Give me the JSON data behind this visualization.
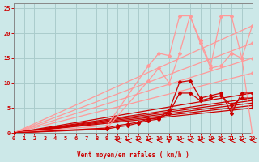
{
  "bg_color": "#cce8e8",
  "grid_color": "#aacccc",
  "line_color_light": "#ff9999",
  "line_color_dark": "#cc0000",
  "xlabel": "Vent moyen/en rafales ( km/h )",
  "xlim": [
    0,
    23
  ],
  "ylim": [
    0,
    26
  ],
  "yticks": [
    0,
    5,
    10,
    15,
    20,
    25
  ],
  "xticks": [
    0,
    1,
    2,
    3,
    4,
    5,
    6,
    7,
    8,
    9,
    10,
    11,
    12,
    13,
    14,
    15,
    16,
    17,
    18,
    19,
    20,
    21,
    22,
    23
  ],
  "lines_light_straight": [
    {
      "x": [
        0,
        23
      ],
      "y": [
        0,
        21.5
      ]
    },
    {
      "x": [
        0,
        23
      ],
      "y": [
        0,
        18.0
      ]
    },
    {
      "x": [
        0,
        23
      ],
      "y": [
        0,
        15.0
      ]
    },
    {
      "x": [
        0,
        23
      ],
      "y": [
        0,
        12.0
      ]
    }
  ],
  "lines_light_jagged": [
    {
      "x": [
        0,
        9,
        13,
        14,
        15,
        16,
        17,
        18,
        19,
        20,
        21,
        22,
        23
      ],
      "y": [
        0,
        1.5,
        13.5,
        16,
        15.5,
        23.5,
        23.5,
        18.5,
        13.5,
        23.5,
        23.5,
        15,
        21.5
      ]
    },
    {
      "x": [
        0,
        9,
        13,
        14,
        15,
        16,
        17,
        18,
        19,
        20,
        21,
        22,
        23
      ],
      "y": [
        0,
        1.0,
        10.5,
        13,
        10,
        16,
        23.5,
        18,
        13,
        13.5,
        16,
        15,
        0
      ]
    }
  ],
  "lines_dark_straight": [
    {
      "x": [
        0,
        23
      ],
      "y": [
        0,
        8.0
      ]
    },
    {
      "x": [
        0,
        23
      ],
      "y": [
        0,
        7.0
      ]
    },
    {
      "x": [
        0,
        23
      ],
      "y": [
        0,
        6.5
      ]
    },
    {
      "x": [
        0,
        23
      ],
      "y": [
        0,
        6.0
      ]
    },
    {
      "x": [
        0,
        23
      ],
      "y": [
        0,
        5.5
      ]
    },
    {
      "x": [
        0,
        23
      ],
      "y": [
        0,
        5.0
      ]
    }
  ],
  "lines_dark_jagged": [
    {
      "x": [
        0,
        9,
        10,
        11,
        12,
        13,
        14,
        15,
        16,
        17,
        18,
        19,
        20,
        21,
        22,
        23
      ],
      "y": [
        0,
        1.0,
        1.5,
        1.8,
        2.2,
        2.8,
        3.0,
        4.5,
        10.2,
        10.5,
        7,
        7.5,
        8,
        4,
        8,
        8
      ]
    },
    {
      "x": [
        0,
        9,
        10,
        11,
        12,
        13,
        14,
        15,
        16,
        17,
        18,
        19,
        20,
        21,
        22,
        23
      ],
      "y": [
        0,
        0.8,
        1.2,
        1.5,
        2.0,
        2.5,
        2.8,
        4.0,
        8,
        8,
        6.5,
        7,
        7.5,
        5.5,
        7,
        7
      ]
    }
  ],
  "arrows": {
    "left_x": [
      10,
      11,
      12,
      13,
      14,
      16,
      17,
      18,
      19,
      20,
      21,
      22,
      23
    ],
    "down_x": [
      15
    ],
    "y": -1.5
  }
}
